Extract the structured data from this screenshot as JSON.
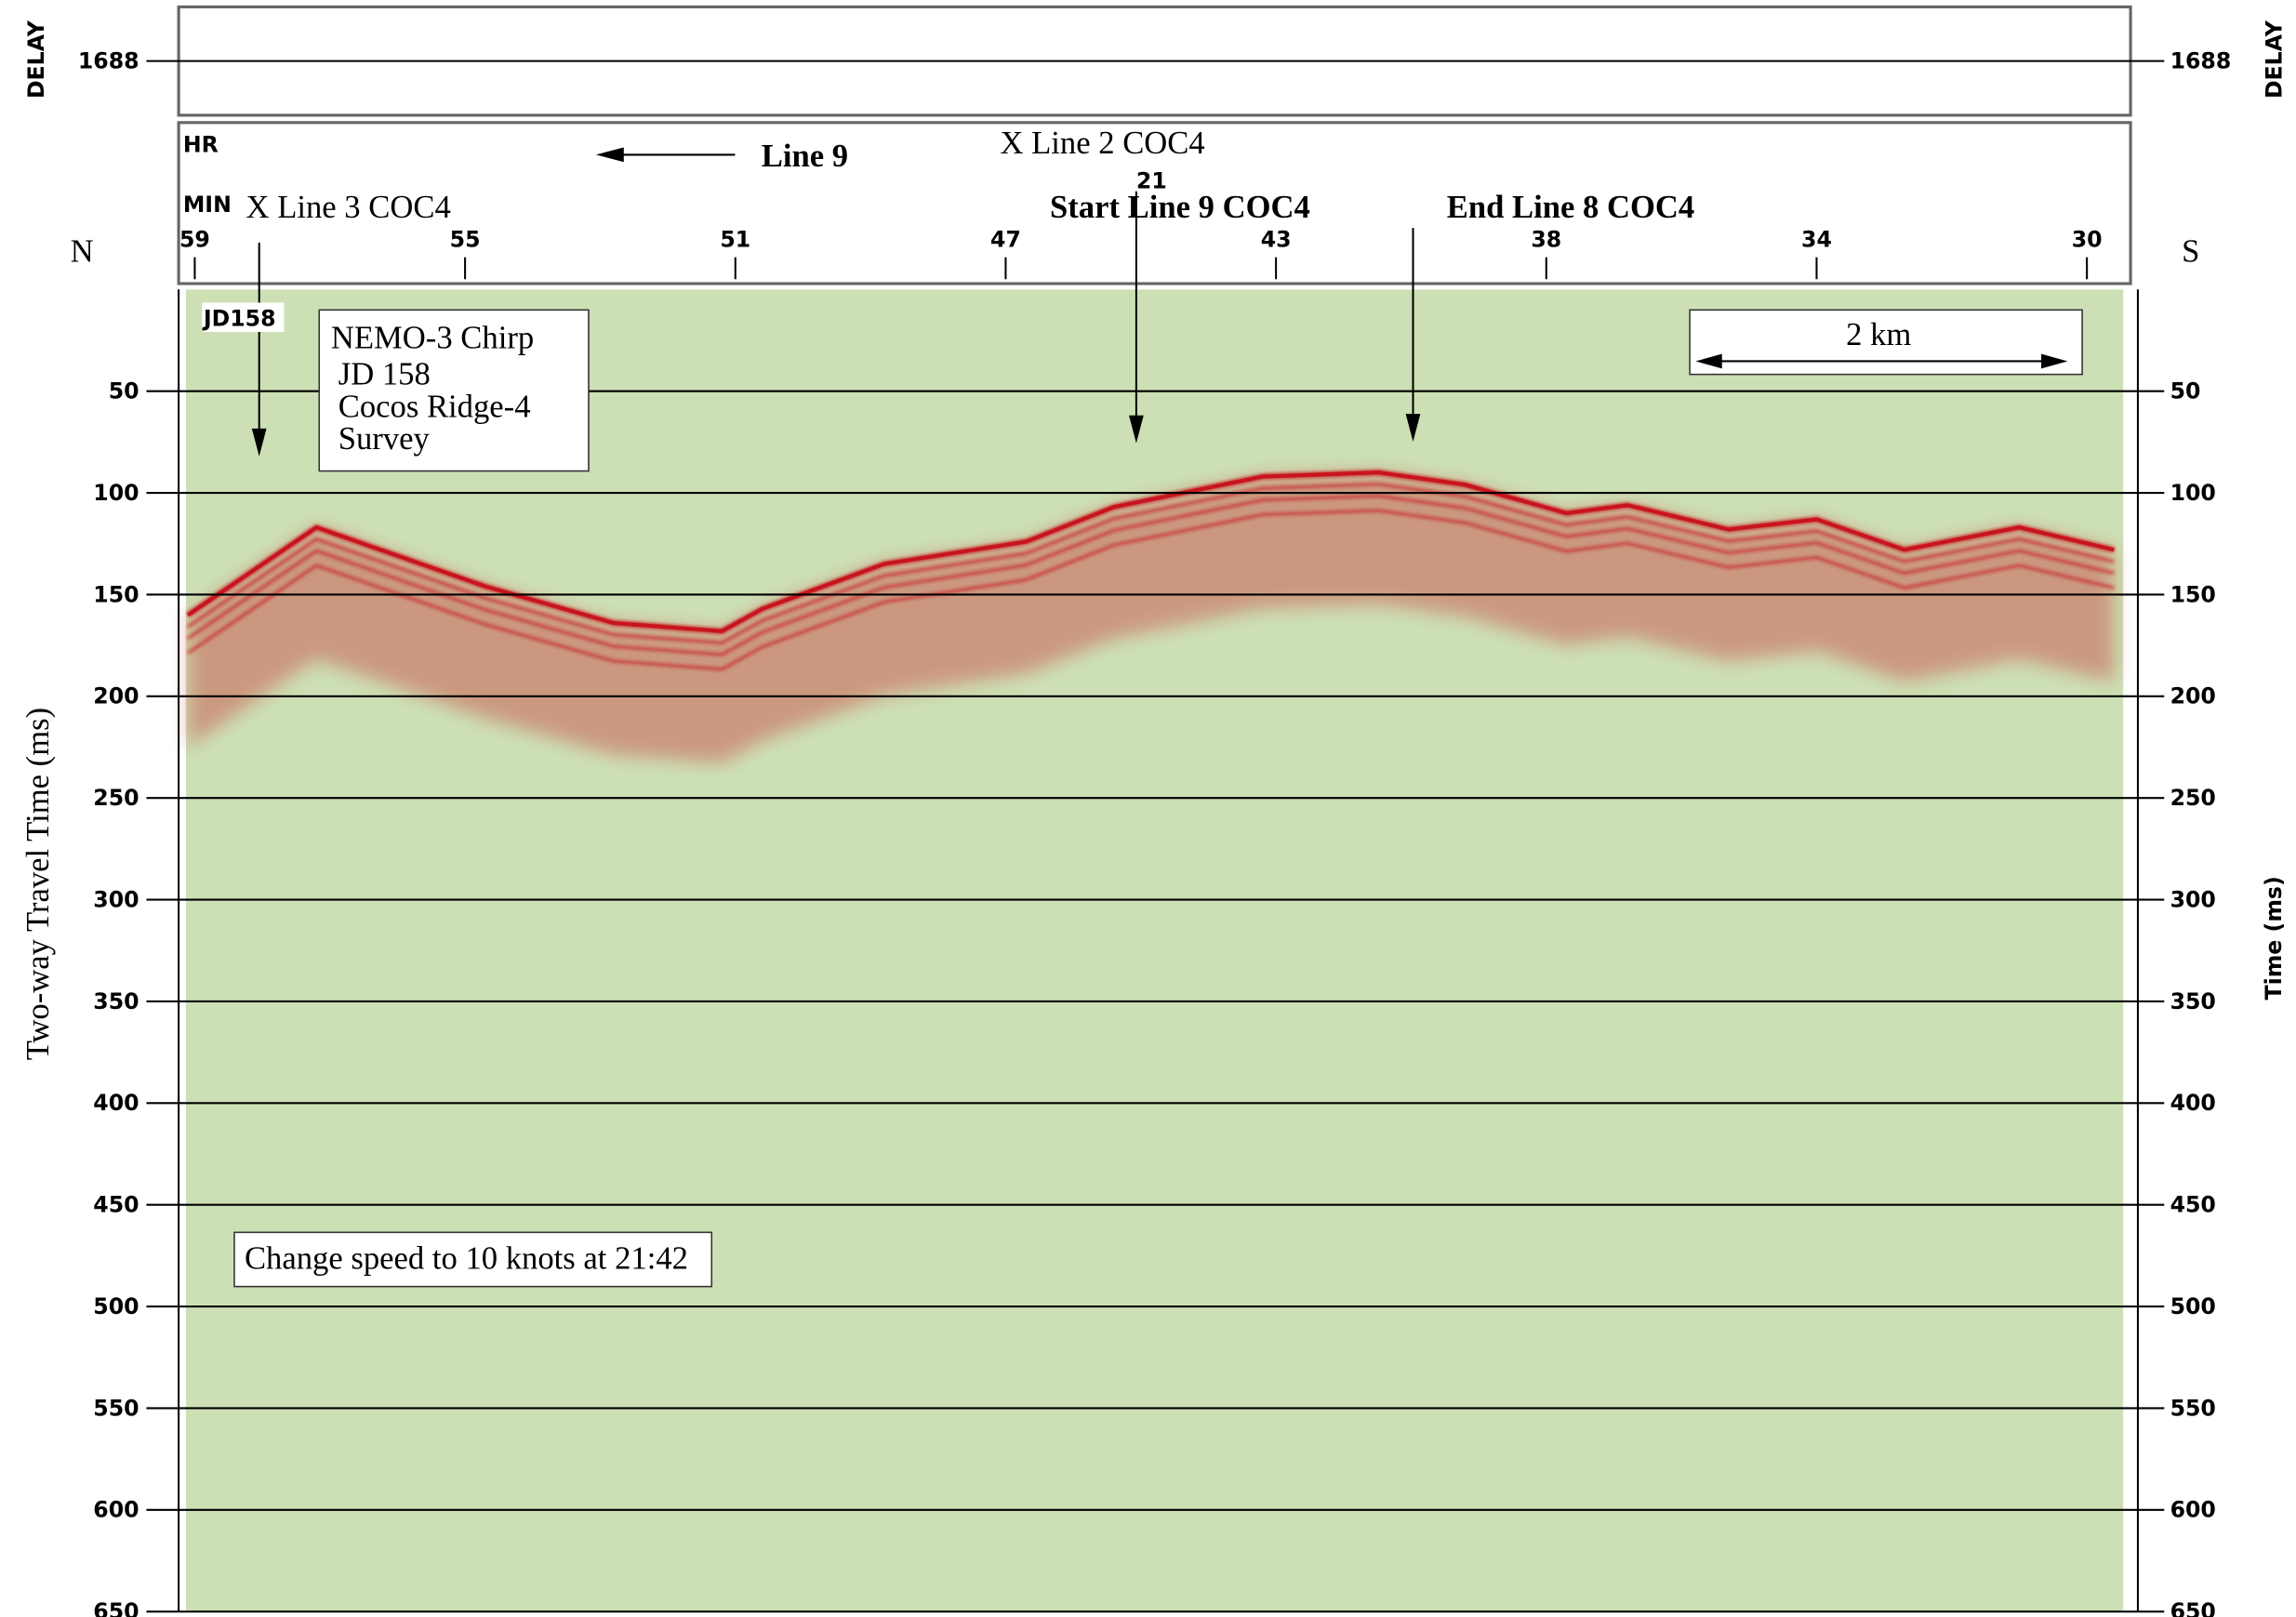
{
  "chart_data": {
    "type": "seismic-profile",
    "delay": {
      "label": "DELAY",
      "value": 1688
    },
    "compass": {
      "left": "N",
      "right": "S"
    },
    "time_header": {
      "hour_label": "HR",
      "minute_label": "MIN",
      "hour": 21
    },
    "xticks": [
      59,
      55,
      51,
      47,
      43,
      38,
      34,
      30
    ],
    "ylabel": "Two-way Travel Time (ms)",
    "y2label": "Time (ms)",
    "ylim": [
      0,
      650
    ],
    "yticks": [
      50,
      100,
      150,
      200,
      250,
      300,
      350,
      400,
      450,
      500,
      550,
      600,
      650
    ],
    "grid": true,
    "background": "#cde0b5",
    "seafloor": {
      "color": "#c8141e",
      "x": [
        59.1,
        57.2,
        54.7,
        52.8,
        51.2,
        50.6,
        48.8,
        46.7,
        45.4,
        43.2,
        41.1,
        39.5,
        37.7,
        36.8,
        35.3,
        34.0,
        32.7,
        31.0,
        29.6
      ],
      "values": [
        160,
        117,
        146,
        164,
        168,
        157,
        135,
        124,
        107,
        92,
        90,
        96,
        110,
        106,
        118,
        113,
        128,
        117,
        128
      ]
    },
    "annotations": {
      "line9": "Line 9",
      "xline2": "X Line 2 COC4",
      "xline3": "X Line 3 COC4",
      "start": "Start Line 9 COC4",
      "end": "End Line 8 COC4"
    },
    "day_label": "JD158",
    "info_box": [
      "NEMO-3 Chirp",
      "JD 158",
      "Cocos Ridge-4",
      "Survey"
    ],
    "scale_bar": "2 km",
    "note": "Change speed to 10 knots at 21:42"
  }
}
